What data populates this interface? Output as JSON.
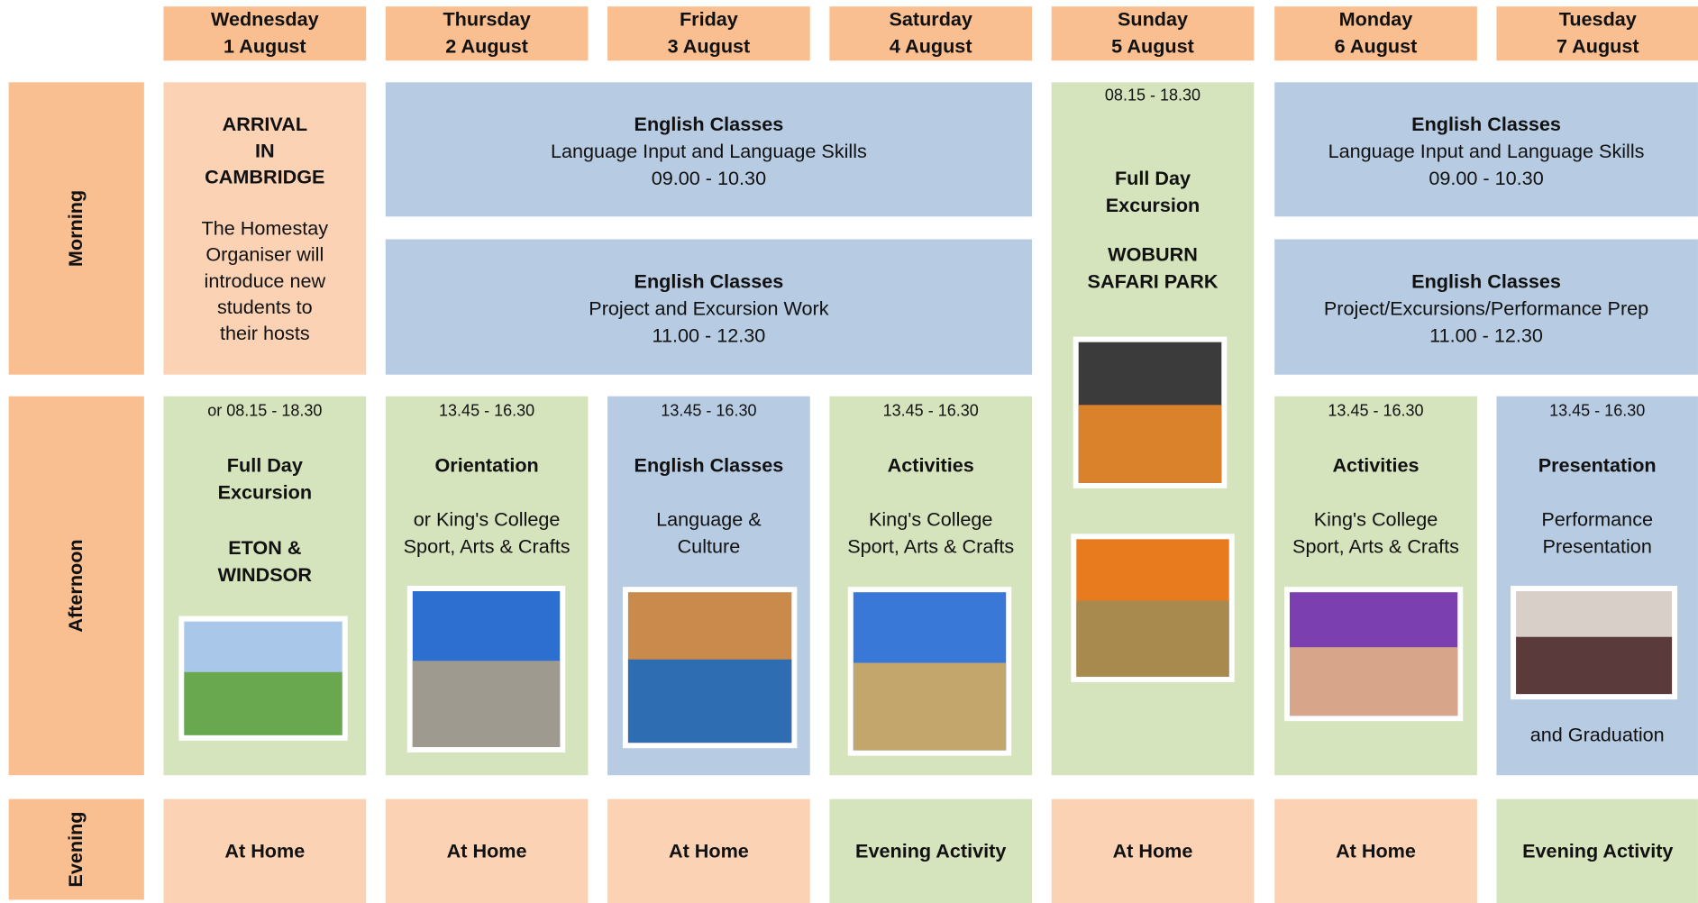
{
  "days": [
    {
      "day": "Wednesday",
      "date": "1 August"
    },
    {
      "day": "Thursday",
      "date": "2 August"
    },
    {
      "day": "Friday",
      "date": "3 August"
    },
    {
      "day": "Saturday",
      "date": "4 August"
    },
    {
      "day": "Sunday",
      "date": "5 August"
    },
    {
      "day": "Monday",
      "date": "6 August"
    },
    {
      "day": "Tuesday",
      "date": "7 August"
    }
  ],
  "row_labels": [
    "Morning",
    "Afternoon",
    "Evening"
  ],
  "cells": [
    {
      "title": [
        "ARRIVAL",
        "IN",
        "CAMBRIDGE"
      ],
      "text": [
        "The Homestay",
        "Organiser will",
        "introduce new",
        "students to",
        "their hosts"
      ]
    },
    {
      "title": [
        "English Classes"
      ],
      "text": [
        "Language Input and Language Skills",
        "09.00 - 10.30"
      ]
    },
    {
      "title": [
        "English Classes"
      ],
      "text": [
        "Project and Excursion Work",
        "11.00 - 12.30"
      ]
    },
    {
      "time": "08.15 - 18.30",
      "title": [
        "Full Day",
        "Excursion"
      ],
      "place": [
        "WOBURN",
        "SAFARI PARK"
      ]
    },
    {
      "title": [
        "English Classes"
      ],
      "text": [
        "Language Input and Language Skills",
        "09.00 - 10.30"
      ]
    },
    {
      "title": [
        "English Classes"
      ],
      "text": [
        "Project/Excursions/Performance Prep",
        "11.00 - 12.30"
      ]
    },
    {
      "time": "or 08.15 - 18.30",
      "title": [
        "Full Day",
        "Excursion"
      ],
      "place": [
        "ETON &",
        "WINDSOR"
      ]
    },
    {
      "time": "13.45 - 16.30",
      "title": [
        "Orientation"
      ],
      "text": [
        "or King's College",
        "Sport, Arts & Crafts"
      ]
    },
    {
      "time": "13.45 - 16.30",
      "title": [
        "English Classes"
      ],
      "text": [
        "Language &",
        "Culture"
      ]
    },
    {
      "time": "13.45 - 16.30",
      "title": [
        "Activities"
      ],
      "text": [
        "King's College",
        "Sport, Arts & Crafts"
      ]
    },
    {
      "time": "13.45 - 16.30",
      "title": [
        "Activities"
      ],
      "text": [
        "King's College",
        "Sport, Arts & Crafts"
      ]
    },
    {
      "time": "13.45 - 16.30",
      "title": [
        "Presentation"
      ],
      "text": [
        "Performance",
        "Presentation"
      ],
      "footer": "and Graduation"
    }
  ],
  "evening": [
    "At Home",
    "At Home",
    "At Home",
    "Evening Activity",
    "At Home",
    "At Home",
    "Evening Activity"
  ]
}
